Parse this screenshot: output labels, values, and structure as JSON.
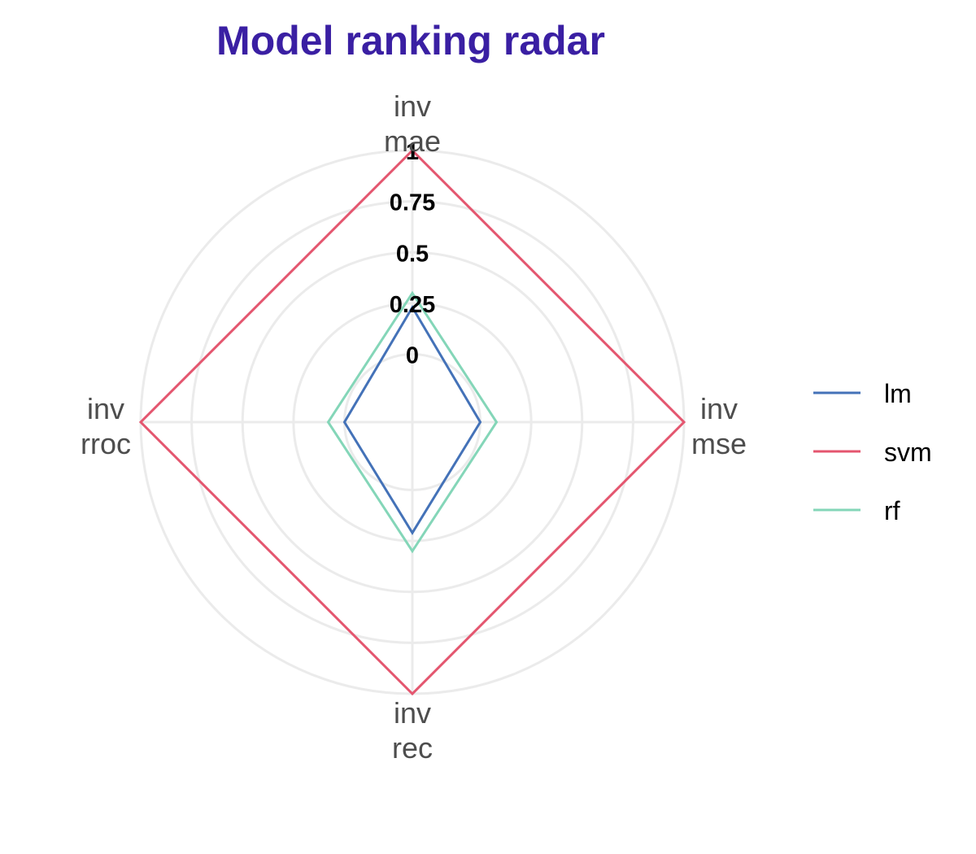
{
  "chart_data": {
    "type": "radar",
    "title": "Model ranking radar",
    "title_color": "#3a1fa3",
    "axes": [
      {
        "lines": [
          "inv",
          "mae"
        ]
      },
      {
        "lines": [
          "inv",
          "mse"
        ]
      },
      {
        "lines": [
          "inv",
          "rec"
        ]
      },
      {
        "lines": [
          "inv",
          "rroc"
        ]
      }
    ],
    "rlim": [
      0,
      1
    ],
    "ticks": [
      {
        "value": 0,
        "label": "0"
      },
      {
        "value": 0.25,
        "label": "0.25"
      },
      {
        "value": 0.5,
        "label": "0.5"
      },
      {
        "value": 0.75,
        "label": "0.75"
      },
      {
        "value": 1,
        "label": "1"
      }
    ],
    "grid": true,
    "grid_color": "#ebebeb",
    "legend_position": "right",
    "series": [
      {
        "name": "lm",
        "color": "#4472b8",
        "values": [
          0.23,
          0,
          0.21,
          0
        ]
      },
      {
        "name": "svm",
        "color": "#e4566f",
        "values": [
          1,
          1,
          1,
          1
        ]
      },
      {
        "name": "rf",
        "color": "#84d6b8",
        "values": [
          0.3,
          0.08,
          0.3,
          0.08
        ]
      }
    ]
  }
}
